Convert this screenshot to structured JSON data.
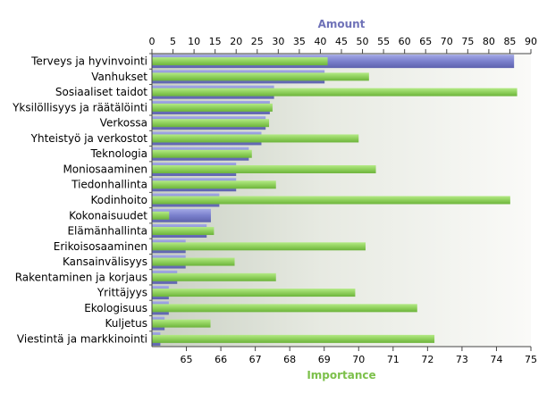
{
  "chart_data": {
    "type": "bar",
    "orientation": "horizontal",
    "categories": [
      "Terveys ja hyvinvointi",
      "Vanhukset",
      "Sosiaaliset taidot",
      "Yksilöllisyys ja räätälöinti",
      "Verkossa",
      "Yhteistyö ja verkostot",
      "Teknologia",
      "Moniosaaminen",
      "Tiedonhallinta",
      "Kodinhoito",
      "Kokonaisuudet",
      "Elämänhallinta",
      "Erikoisosaaminen",
      "Kansainvälisyys",
      "Rakentaminen ja korjaus",
      "Yrittäjyys",
      "Ekologisuus",
      "Kuljetus",
      "Viestintä ja markkinointi"
    ],
    "series": [
      {
        "name": "Amount",
        "axis": "top",
        "values": [
          86,
          41,
          29,
          28,
          27,
          26,
          23,
          20,
          20,
          16,
          14,
          13,
          8,
          8,
          6,
          4,
          4,
          3,
          2
        ]
      },
      {
        "name": "Importance",
        "axis": "bottom",
        "values": [
          69.1,
          70.3,
          74.6,
          67.5,
          67.4,
          70.0,
          66.9,
          70.5,
          67.6,
          74.4,
          64.5,
          65.8,
          70.2,
          66.4,
          67.6,
          69.9,
          71.7,
          65.7,
          72.2
        ]
      }
    ],
    "top_axis": {
      "title": "Amount",
      "range": [
        0,
        90
      ],
      "ticks": [
        "0",
        "5",
        "10",
        "15",
        "20",
        "25",
        "30",
        "35",
        "40",
        "45",
        "50",
        "55",
        "60",
        "65",
        "70",
        "75",
        "80",
        "85",
        "90"
      ]
    },
    "bottom_axis": {
      "title": "Importance",
      "range": [
        64,
        75
      ],
      "ticks": [
        "65",
        "66",
        "67",
        "68",
        "69",
        "70",
        "71",
        "72",
        "73",
        "74",
        "75"
      ]
    },
    "colors": {
      "amount": "#7a80cc",
      "importance": "#8fd05c",
      "amount_title": "#6f72b8",
      "importance_title": "#7cc04a"
    },
    "grid": false
  }
}
